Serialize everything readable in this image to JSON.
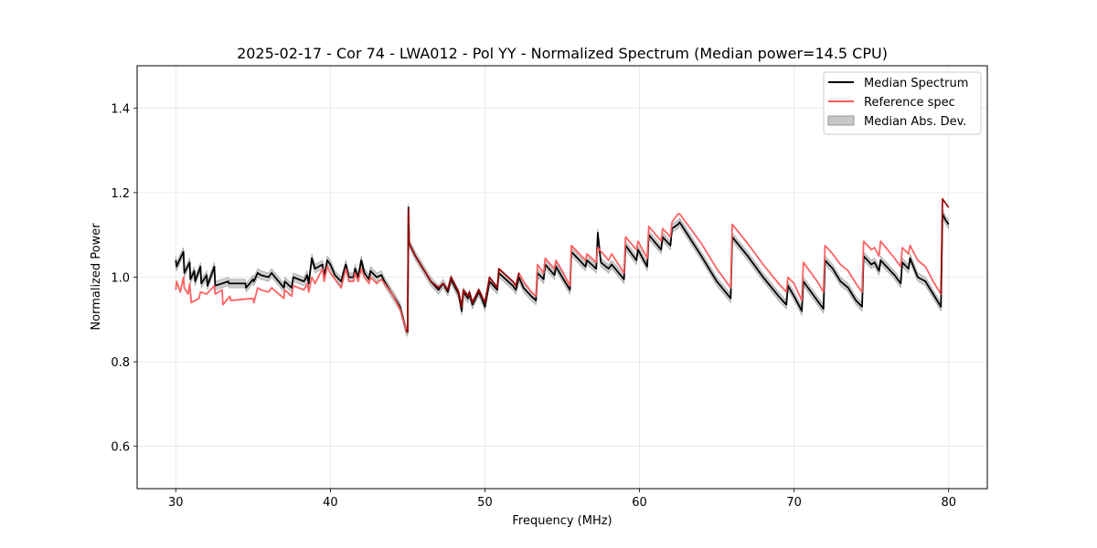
{
  "chart_data": {
    "type": "line",
    "title": "2025-02-17 - Cor 74 - LWA012 - Pol YY - Normalized Spectrum (Median power=14.5 CPU)",
    "xlabel": "Frequency (MHz)",
    "ylabel": "Normalized Power",
    "xlim": [
      27.5,
      82.5
    ],
    "ylim": [
      0.5,
      1.5
    ],
    "xticks": [
      30,
      40,
      50,
      60,
      70,
      80
    ],
    "yticks": [
      0.6,
      0.8,
      1.0,
      1.2,
      1.4
    ],
    "grid": true,
    "legend_position": "top-right",
    "legend": [
      "Median Spectrum",
      "Reference spec",
      "Median Abs. Dev."
    ],
    "colors": {
      "median": "#000000",
      "reference": "#ff5a5a",
      "mad_fill": "#c8c8c8",
      "mad_edge": "#9a9a9a",
      "overlap": "#8b0000"
    },
    "mad_halfwidth": 0.01,
    "series": [
      {
        "name": "Median Spectrum",
        "points": [
          [
            30.0,
            1.04
          ],
          [
            30.05,
            1.025
          ],
          [
            30.3,
            1.045
          ],
          [
            30.5,
            1.06
          ],
          [
            30.55,
            1.01
          ],
          [
            30.9,
            1.035
          ],
          [
            30.95,
            0.995
          ],
          [
            31.2,
            1.015
          ],
          [
            31.25,
            0.99
          ],
          [
            31.6,
            1.025
          ],
          [
            31.65,
            0.985
          ],
          [
            32.0,
            1.005
          ],
          [
            32.05,
            0.98
          ],
          [
            32.5,
            1.025
          ],
          [
            32.55,
            0.98
          ],
          [
            33.4,
            0.99
          ],
          [
            33.45,
            0.985
          ],
          [
            34.5,
            0.985
          ],
          [
            34.55,
            0.975
          ],
          [
            35.0,
            0.995
          ],
          [
            35.05,
            0.99
          ],
          [
            35.3,
            1.01
          ],
          [
            35.5,
            1.005
          ],
          [
            36.0,
            1.0
          ],
          [
            36.2,
            1.01
          ],
          [
            37.0,
            0.975
          ],
          [
            37.05,
            0.99
          ],
          [
            37.5,
            0.975
          ],
          [
            37.6,
            1.0
          ],
          [
            38.3,
            0.99
          ],
          [
            38.5,
            1.005
          ],
          [
            38.6,
            0.985
          ],
          [
            38.8,
            1.045
          ],
          [
            39.0,
            1.02
          ],
          [
            39.5,
            1.03
          ],
          [
            39.6,
            1.0
          ],
          [
            39.8,
            1.04
          ],
          [
            40.0,
            1.03
          ],
          [
            40.3,
            1.005
          ],
          [
            40.7,
            0.99
          ],
          [
            41.0,
            1.03
          ],
          [
            41.2,
            1.0
          ],
          [
            41.5,
            1.0
          ],
          [
            41.6,
            1.02
          ],
          [
            41.8,
            1.0
          ],
          [
            42.0,
            1.04
          ],
          [
            42.2,
            1.01
          ],
          [
            42.5,
            0.995
          ],
          [
            42.6,
            1.015
          ],
          [
            43.0,
            1.0
          ],
          [
            43.3,
            1.005
          ],
          [
            43.5,
            0.99
          ],
          [
            44.0,
            0.96
          ],
          [
            44.5,
            0.93
          ],
          [
            44.9,
            0.875
          ],
          [
            45.0,
            0.87
          ],
          [
            45.05,
            1.165
          ],
          [
            45.1,
            1.08
          ],
          [
            45.5,
            1.05
          ],
          [
            46.0,
            1.02
          ],
          [
            46.5,
            0.99
          ],
          [
            47.0,
            0.97
          ],
          [
            47.3,
            0.985
          ],
          [
            47.6,
            0.965
          ],
          [
            47.8,
            0.995
          ],
          [
            48.3,
            0.96
          ],
          [
            48.5,
            0.92
          ],
          [
            48.6,
            0.965
          ],
          [
            48.9,
            0.95
          ],
          [
            49.0,
            0.96
          ],
          [
            49.2,
            0.935
          ],
          [
            49.6,
            0.965
          ],
          [
            49.8,
            0.95
          ],
          [
            50.0,
            0.93
          ],
          [
            50.3,
            0.99
          ],
          [
            50.8,
            0.97
          ],
          [
            50.9,
            1.01
          ],
          [
            51.8,
            0.98
          ],
          [
            52.0,
            0.97
          ],
          [
            52.2,
            1.0
          ],
          [
            52.5,
            0.975
          ],
          [
            53.0,
            0.955
          ],
          [
            53.3,
            0.945
          ],
          [
            53.4,
            1.01
          ],
          [
            53.8,
            0.995
          ],
          [
            53.9,
            1.03
          ],
          [
            54.5,
            1.005
          ],
          [
            54.6,
            1.025
          ],
          [
            55.0,
            1.0
          ],
          [
            55.5,
            0.97
          ],
          [
            55.6,
            1.06
          ],
          [
            56.5,
            1.025
          ],
          [
            56.6,
            1.04
          ],
          [
            57.2,
            1.02
          ],
          [
            57.3,
            1.105
          ],
          [
            57.5,
            1.035
          ],
          [
            58.0,
            1.02
          ],
          [
            58.2,
            1.03
          ],
          [
            59.0,
            0.995
          ],
          [
            59.1,
            1.075
          ],
          [
            59.8,
            1.04
          ],
          [
            59.9,
            1.065
          ],
          [
            60.5,
            1.025
          ],
          [
            60.6,
            1.1
          ],
          [
            61.4,
            1.065
          ],
          [
            61.5,
            1.095
          ],
          [
            62.0,
            1.075
          ],
          [
            62.1,
            1.115
          ],
          [
            62.5,
            1.125
          ],
          [
            62.6,
            1.13
          ],
          [
            64.0,
            1.05
          ],
          [
            65.0,
            0.99
          ],
          [
            65.9,
            0.95
          ],
          [
            66.0,
            1.095
          ],
          [
            67.0,
            1.05
          ],
          [
            68.0,
            1.0
          ],
          [
            69.0,
            0.955
          ],
          [
            69.5,
            0.935
          ],
          [
            69.6,
            0.98
          ],
          [
            70.0,
            0.955
          ],
          [
            70.5,
            0.92
          ],
          [
            70.6,
            0.99
          ],
          [
            71.5,
            0.945
          ],
          [
            71.9,
            0.925
          ],
          [
            72.0,
            1.04
          ],
          [
            72.5,
            1.02
          ],
          [
            73.0,
            0.99
          ],
          [
            73.5,
            0.975
          ],
          [
            74.0,
            0.945
          ],
          [
            74.4,
            0.93
          ],
          [
            74.5,
            1.05
          ],
          [
            75.0,
            1.03
          ],
          [
            75.2,
            1.035
          ],
          [
            75.5,
            1.015
          ],
          [
            75.6,
            1.04
          ],
          [
            76.5,
            1.005
          ],
          [
            76.9,
            0.985
          ],
          [
            77.0,
            1.035
          ],
          [
            77.4,
            1.02
          ],
          [
            77.5,
            1.045
          ],
          [
            78.0,
            1.0
          ],
          [
            78.5,
            0.99
          ],
          [
            79.0,
            0.96
          ],
          [
            79.5,
            0.93
          ],
          [
            79.6,
            1.15
          ],
          [
            79.8,
            1.135
          ],
          [
            80.0,
            1.125
          ]
        ]
      },
      {
        "name": "Reference spec",
        "points": [
          [
            30.0,
            0.97
          ],
          [
            30.05,
            0.99
          ],
          [
            30.3,
            0.965
          ],
          [
            30.5,
            1.0
          ],
          [
            30.55,
            0.975
          ],
          [
            30.8,
            0.96
          ],
          [
            30.9,
            0.985
          ],
          [
            31.0,
            0.94
          ],
          [
            31.5,
            0.95
          ],
          [
            31.6,
            0.965
          ],
          [
            32.0,
            0.96
          ],
          [
            32.5,
            0.98
          ],
          [
            32.55,
            0.96
          ],
          [
            33.0,
            0.97
          ],
          [
            33.05,
            0.935
          ],
          [
            33.5,
            0.955
          ],
          [
            33.55,
            0.945
          ],
          [
            35.0,
            0.95
          ],
          [
            35.05,
            0.94
          ],
          [
            35.3,
            0.975
          ],
          [
            35.5,
            0.97
          ],
          [
            36.0,
            0.965
          ],
          [
            36.2,
            0.975
          ],
          [
            37.0,
            0.95
          ],
          [
            37.05,
            0.97
          ],
          [
            37.5,
            0.955
          ],
          [
            37.6,
            0.98
          ],
          [
            38.3,
            0.97
          ],
          [
            38.5,
            0.985
          ],
          [
            38.6,
            0.965
          ],
          [
            38.8,
            1.0
          ],
          [
            39.0,
            0.985
          ],
          [
            39.5,
            1.02
          ],
          [
            39.6,
            0.99
          ],
          [
            39.8,
            1.025
          ],
          [
            40.0,
            1.01
          ],
          [
            40.3,
            0.995
          ],
          [
            40.7,
            0.975
          ],
          [
            41.0,
            1.02
          ],
          [
            41.2,
            0.99
          ],
          [
            41.5,
            0.99
          ],
          [
            41.6,
            1.01
          ],
          [
            41.8,
            0.99
          ],
          [
            42.0,
            1.02
          ],
          [
            42.2,
            1.0
          ],
          [
            42.5,
            0.985
          ],
          [
            42.6,
            1.0
          ],
          [
            43.0,
            0.985
          ],
          [
            43.3,
            0.995
          ],
          [
            43.5,
            0.985
          ],
          [
            44.0,
            0.96
          ],
          [
            44.5,
            0.925
          ],
          [
            44.9,
            0.875
          ],
          [
            45.0,
            0.87
          ],
          [
            45.05,
            1.16
          ],
          [
            45.1,
            1.08
          ],
          [
            45.5,
            1.05
          ],
          [
            46.0,
            1.02
          ],
          [
            46.5,
            0.99
          ],
          [
            47.0,
            0.975
          ],
          [
            47.3,
            0.985
          ],
          [
            47.6,
            0.97
          ],
          [
            47.8,
            1.0
          ],
          [
            48.3,
            0.965
          ],
          [
            48.5,
            0.93
          ],
          [
            48.6,
            0.97
          ],
          [
            48.9,
            0.955
          ],
          [
            49.0,
            0.965
          ],
          [
            49.2,
            0.94
          ],
          [
            49.6,
            0.97
          ],
          [
            49.8,
            0.955
          ],
          [
            50.0,
            0.94
          ],
          [
            50.3,
            1.0
          ],
          [
            50.8,
            0.975
          ],
          [
            50.9,
            1.02
          ],
          [
            51.8,
            0.99
          ],
          [
            52.0,
            0.98
          ],
          [
            52.2,
            1.01
          ],
          [
            52.5,
            0.99
          ],
          [
            53.0,
            0.965
          ],
          [
            53.3,
            0.955
          ],
          [
            53.4,
            1.03
          ],
          [
            53.8,
            1.01
          ],
          [
            53.9,
            1.045
          ],
          [
            54.5,
            1.02
          ],
          [
            54.6,
            1.04
          ],
          [
            55.0,
            1.015
          ],
          [
            55.5,
            0.98
          ],
          [
            55.6,
            1.075
          ],
          [
            56.5,
            1.04
          ],
          [
            56.6,
            1.055
          ],
          [
            57.2,
            1.035
          ],
          [
            57.3,
            1.07
          ],
          [
            58.0,
            1.04
          ],
          [
            58.2,
            1.055
          ],
          [
            59.0,
            1.01
          ],
          [
            59.1,
            1.095
          ],
          [
            59.8,
            1.065
          ],
          [
            59.9,
            1.085
          ],
          [
            60.5,
            1.045
          ],
          [
            60.6,
            1.12
          ],
          [
            61.4,
            1.085
          ],
          [
            61.5,
            1.115
          ],
          [
            62.0,
            1.095
          ],
          [
            62.1,
            1.13
          ],
          [
            62.5,
            1.15
          ],
          [
            62.6,
            1.15
          ],
          [
            64.0,
            1.08
          ],
          [
            65.0,
            1.02
          ],
          [
            65.9,
            0.975
          ],
          [
            66.0,
            1.125
          ],
          [
            67.0,
            1.08
          ],
          [
            68.0,
            1.03
          ],
          [
            69.0,
            0.985
          ],
          [
            69.5,
            0.965
          ],
          [
            69.6,
            1.0
          ],
          [
            70.0,
            0.985
          ],
          [
            70.5,
            0.945
          ],
          [
            70.6,
            1.035
          ],
          [
            71.5,
            0.99
          ],
          [
            71.9,
            0.965
          ],
          [
            72.0,
            1.075
          ],
          [
            72.5,
            1.055
          ],
          [
            73.0,
            1.03
          ],
          [
            73.5,
            1.015
          ],
          [
            74.0,
            0.985
          ],
          [
            74.4,
            0.965
          ],
          [
            74.5,
            1.085
          ],
          [
            75.0,
            1.065
          ],
          [
            75.2,
            1.07
          ],
          [
            75.5,
            1.05
          ],
          [
            75.6,
            1.085
          ],
          [
            76.5,
            1.045
          ],
          [
            76.9,
            1.025
          ],
          [
            77.0,
            1.07
          ],
          [
            77.4,
            1.055
          ],
          [
            77.5,
            1.075
          ],
          [
            78.0,
            1.04
          ],
          [
            78.5,
            1.025
          ],
          [
            79.0,
            0.99
          ],
          [
            79.5,
            0.96
          ],
          [
            79.6,
            1.185
          ],
          [
            79.8,
            1.175
          ],
          [
            80.0,
            1.165
          ]
        ]
      }
    ]
  }
}
